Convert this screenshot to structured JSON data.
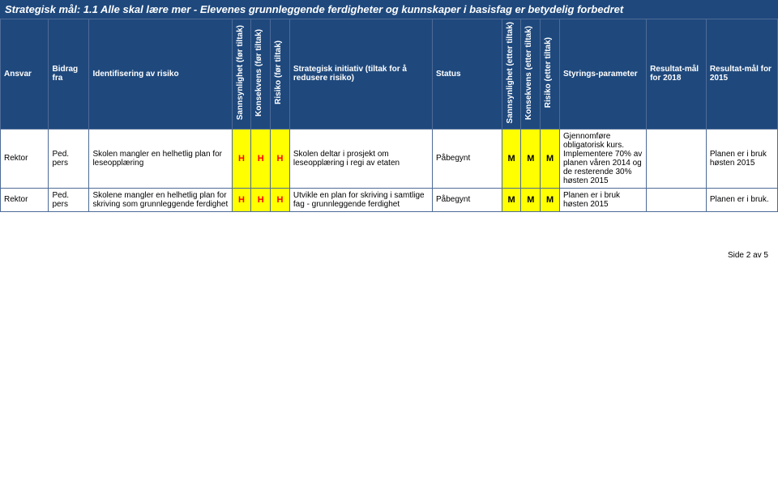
{
  "title": "Strategisk mål: 1.1 Alle skal lære mer - Elevenes grunnleggende ferdigheter og kunnskaper i basisfag er betydelig forbedret",
  "headers": {
    "ansvar": "Ansvar",
    "bidrag": "Bidrag fra",
    "identif": "Identifisering av risiko",
    "sann_for": "Sannsynlighet (før tiltak)",
    "kons_for": "Konsekvens (før tiltak)",
    "risiko_for": "Risiko (før tiltak)",
    "initiativ": "Strategisk initiativ (tiltak for å redusere risiko)",
    "status": "Status",
    "sann_etter": "Sannsynlighet (etter tiltak)",
    "kons_etter": "Konsekvens (etter tiltak)",
    "risiko_etter": "Risiko (etter tiltak)",
    "styring": "Styrings-parameter",
    "res2018": "Resultat-mål for 2018",
    "res2015": "Resultat-mål for 2015"
  },
  "rows": [
    {
      "ansvar": "Rektor",
      "bidrag": "Ped. pers",
      "identif": "Skolen mangler en helhetlig plan for leseopplæring",
      "h1": "H",
      "h2": "H",
      "h3": "H",
      "initiativ": "Skolen deltar i prosjekt om leseopplæring i regi av etaten",
      "status": "Påbegynt",
      "m1": "M",
      "m2": "M",
      "m3": "M",
      "styring": "Gjennomføre obligatorisk kurs. Implementere 70% av planen våren 2014 og de resterende 30% høsten 2015",
      "res2018": "",
      "res2015": "Planen er i bruk høsten 2015"
    },
    {
      "ansvar": "Rektor",
      "bidrag": "Ped. pers",
      "identif": "Skolene mangler en helhetlig plan for skriving som grunnleggende ferdighet",
      "h1": "H",
      "h2": "H",
      "h3": "H",
      "initiativ": "Utvikle en plan for skriving i samtlige fag - grunnleggende ferdighet",
      "status": "Påbegynt",
      "m1": "M",
      "m2": "M",
      "m3": "M",
      "styring": "Planen er i bruk høsten 2015",
      "res2018": "",
      "res2015": "Planen er i bruk."
    }
  ],
  "footer": "Side 2 av 5",
  "colors": {
    "header_bg": "#1f497d",
    "header_fg": "#ffffff",
    "cell_highlight_bg": "#ffff00",
    "h_color": "#ff0000",
    "m_color": "#000000",
    "border": "#4e6b97"
  },
  "font_sizes": {
    "title": 13,
    "body": 10,
    "footer": 10
  }
}
